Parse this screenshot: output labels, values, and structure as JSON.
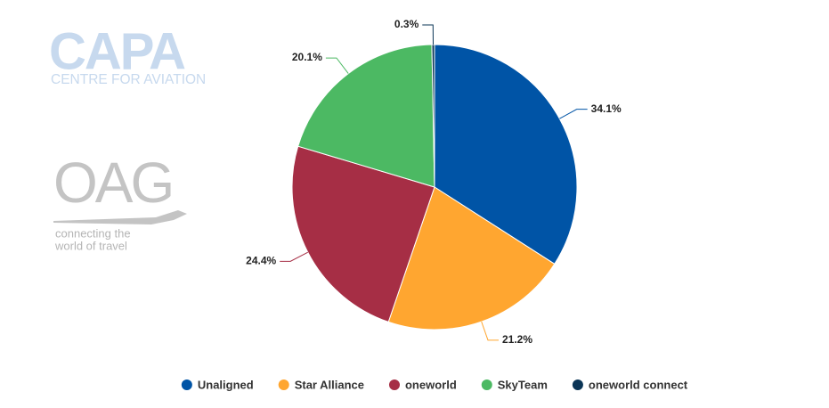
{
  "logos": {
    "capa": "CAPA",
    "capa_subtitle": "CENTRE FOR AVIATION",
    "oag": "OAG",
    "oag_tagline_1": "connecting the",
    "oag_tagline_2": "world of travel"
  },
  "chart_data": {
    "type": "pie",
    "categories": [
      "Unaligned",
      "Star Alliance",
      "oneworld",
      "SkyTeam",
      "oneworld connect"
    ],
    "values": [
      34.1,
      21.2,
      24.4,
      20.1,
      0.3
    ],
    "value_labels": [
      "34.1%",
      "21.2%",
      "24.4%",
      "20.1%",
      "0.3%"
    ],
    "colors": [
      "#0054a6",
      "#ffa630",
      "#a62e45",
      "#4cb963",
      "#0b3556"
    ],
    "legend": "bottom"
  }
}
